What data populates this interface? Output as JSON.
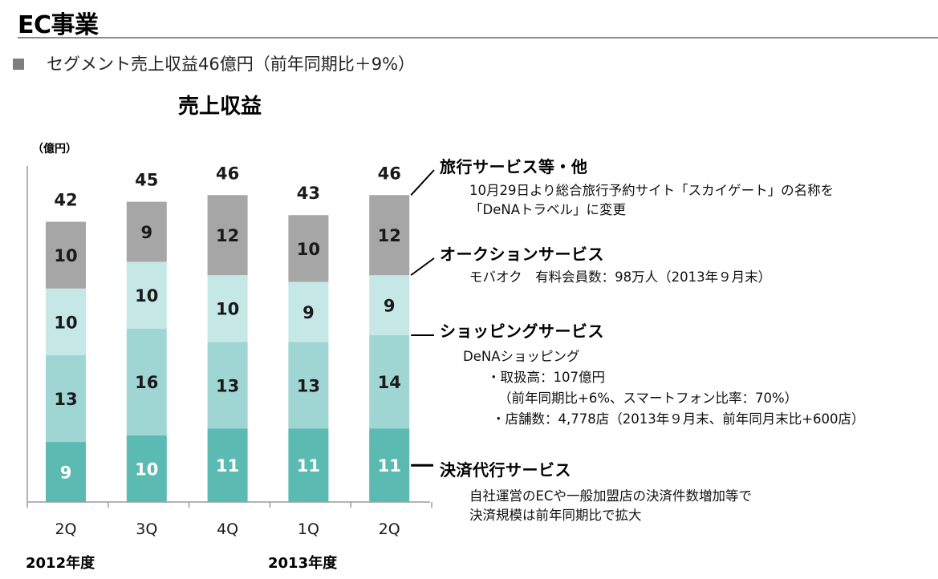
{
  "header": {
    "title": "EC事業",
    "subtitle": "セグメント売上収益46億円（前年同期比＋9%）"
  },
  "chart_data": {
    "type": "bar",
    "stacked": true,
    "title": "売上収益",
    "unit_label": "（億円）",
    "categories": [
      "2Q",
      "3Q",
      "4Q",
      "1Q",
      "2Q"
    ],
    "fiscal_years": [
      "2012年度",
      "2013年度"
    ],
    "totals": [
      42,
      45,
      46,
      43,
      46
    ],
    "series": [
      {
        "name": "決済代行サービス",
        "values": [
          9,
          10,
          11,
          11,
          11
        ],
        "color": "#5bbbb2",
        "label_color": "#ffffff"
      },
      {
        "name": "ショッピングサービス",
        "values": [
          13,
          16,
          13,
          13,
          14
        ],
        "color": "#9fd6d3",
        "label_color": "#1a1a1a"
      },
      {
        "name": "オークションサービス",
        "values": [
          10,
          10,
          10,
          9,
          9
        ],
        "color": "#c5e7e6",
        "label_color": "#1a1a1a"
      },
      {
        "name": "旅行サービス等・他",
        "values": [
          10,
          9,
          12,
          10,
          12
        ],
        "color": "#a6a6a6",
        "label_color": "#1a1a1a"
      }
    ],
    "ylim": [
      0,
      50
    ],
    "grid": false,
    "legend": "right"
  },
  "segments": {
    "travel": {
      "title": "旅行サービス等・他",
      "lines": [
        "10月29日より総合旅行予約サイト「スカイゲート」の名称を",
        "「DeNAトラベル」に変更"
      ]
    },
    "auction": {
      "title": "オークションサービス",
      "lines": [
        "モバオク　有料会員数：98万人（2013年９月末）"
      ]
    },
    "shopping": {
      "title": "ショッピングサービス",
      "lines": [
        "DeNAショッピング",
        "・取扱高：107億円",
        "（前年同期比+6%、スマートフォン比率：70%）",
        "・店舗数：4,778店（2013年９月末、前年同月末比+600店）"
      ]
    },
    "payment": {
      "title": "決済代行サービス",
      "lines": [
        "自社運営のECや一般加盟店の決済件数増加等で",
        "決済規模は前年同期比で拡大"
      ]
    }
  }
}
